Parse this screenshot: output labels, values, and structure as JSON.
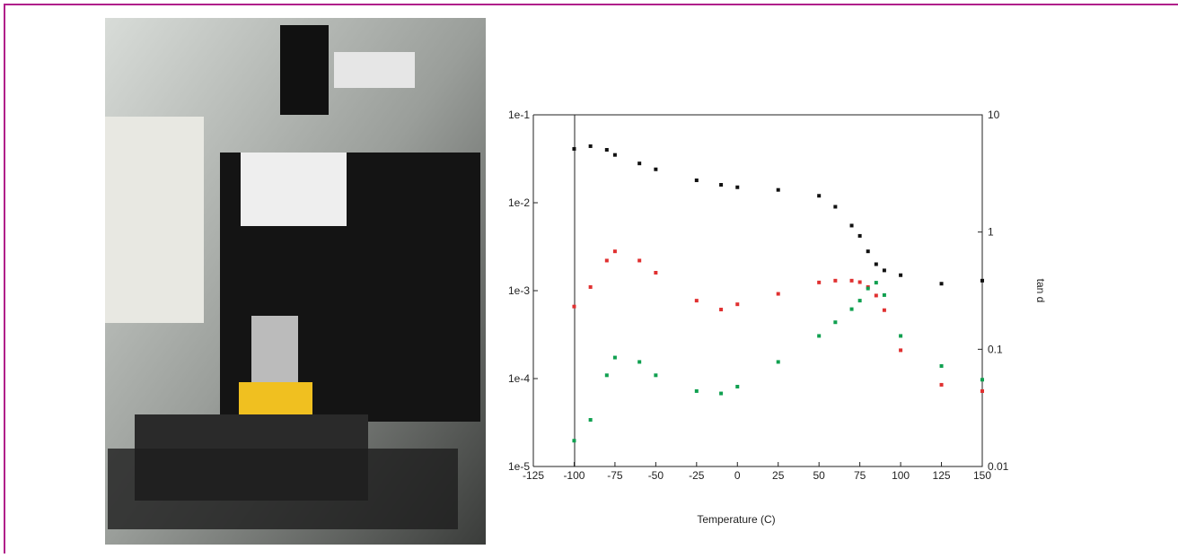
{
  "chart_data": {
    "type": "scatter",
    "x_label": "Temperature (C)",
    "y2_label": "tan d",
    "x": [
      -100,
      -90,
      -80,
      -75,
      -60,
      -50,
      -25,
      -10,
      0,
      25,
      50,
      60,
      70,
      75,
      80,
      85,
      90,
      100,
      125,
      150
    ],
    "series": [
      {
        "color": "#111111",
        "values": [
          0.041,
          0.044,
          0.04,
          0.035,
          0.028,
          0.024,
          0.018,
          0.016,
          0.015,
          0.014,
          0.012,
          0.009,
          0.0055,
          0.0042,
          0.0028,
          0.002,
          0.0017,
          0.0015,
          0.0012,
          0.0013
        ]
      },
      {
        "color": "#e03030",
        "values": [
          0.00066,
          0.0011,
          0.0022,
          0.0028,
          0.0022,
          0.0016,
          0.00077,
          0.00061,
          0.0007,
          0.00092,
          0.00124,
          0.0013,
          0.0013,
          0.00125,
          0.0011,
          0.00088,
          0.0006,
          0.00021,
          8.5e-05,
          7.2e-05
        ]
      },
      {
        "color": "#10a050",
        "axis": "y2",
        "values": [
          0.0166,
          0.025,
          0.06,
          0.085,
          0.078,
          0.06,
          0.044,
          0.042,
          0.048,
          0.078,
          0.13,
          0.17,
          0.22,
          0.26,
          0.33,
          0.37,
          0.29,
          0.13,
          0.072,
          0.055
        ]
      }
    ],
    "xlim": [
      -125,
      150
    ],
    "xticks": [
      -125,
      -100,
      -75,
      -50,
      -25,
      0,
      25,
      50,
      75,
      100,
      125,
      150
    ],
    "ylim": [
      1e-05,
      0.1
    ],
    "y_log": true,
    "yticks": [
      {
        "value": 1e-05,
        "label": "1e-5"
      },
      {
        "value": 0.0001,
        "label": "1e-4"
      },
      {
        "value": 0.001,
        "label": "1e-3"
      },
      {
        "value": 0.01,
        "label": "1e-2"
      },
      {
        "value": 0.1,
        "label": "1e-1"
      }
    ],
    "y2lim": [
      0.01,
      10
    ],
    "y2_log": true,
    "y2ticks": [
      0.01,
      0.1,
      1,
      10
    ]
  }
}
